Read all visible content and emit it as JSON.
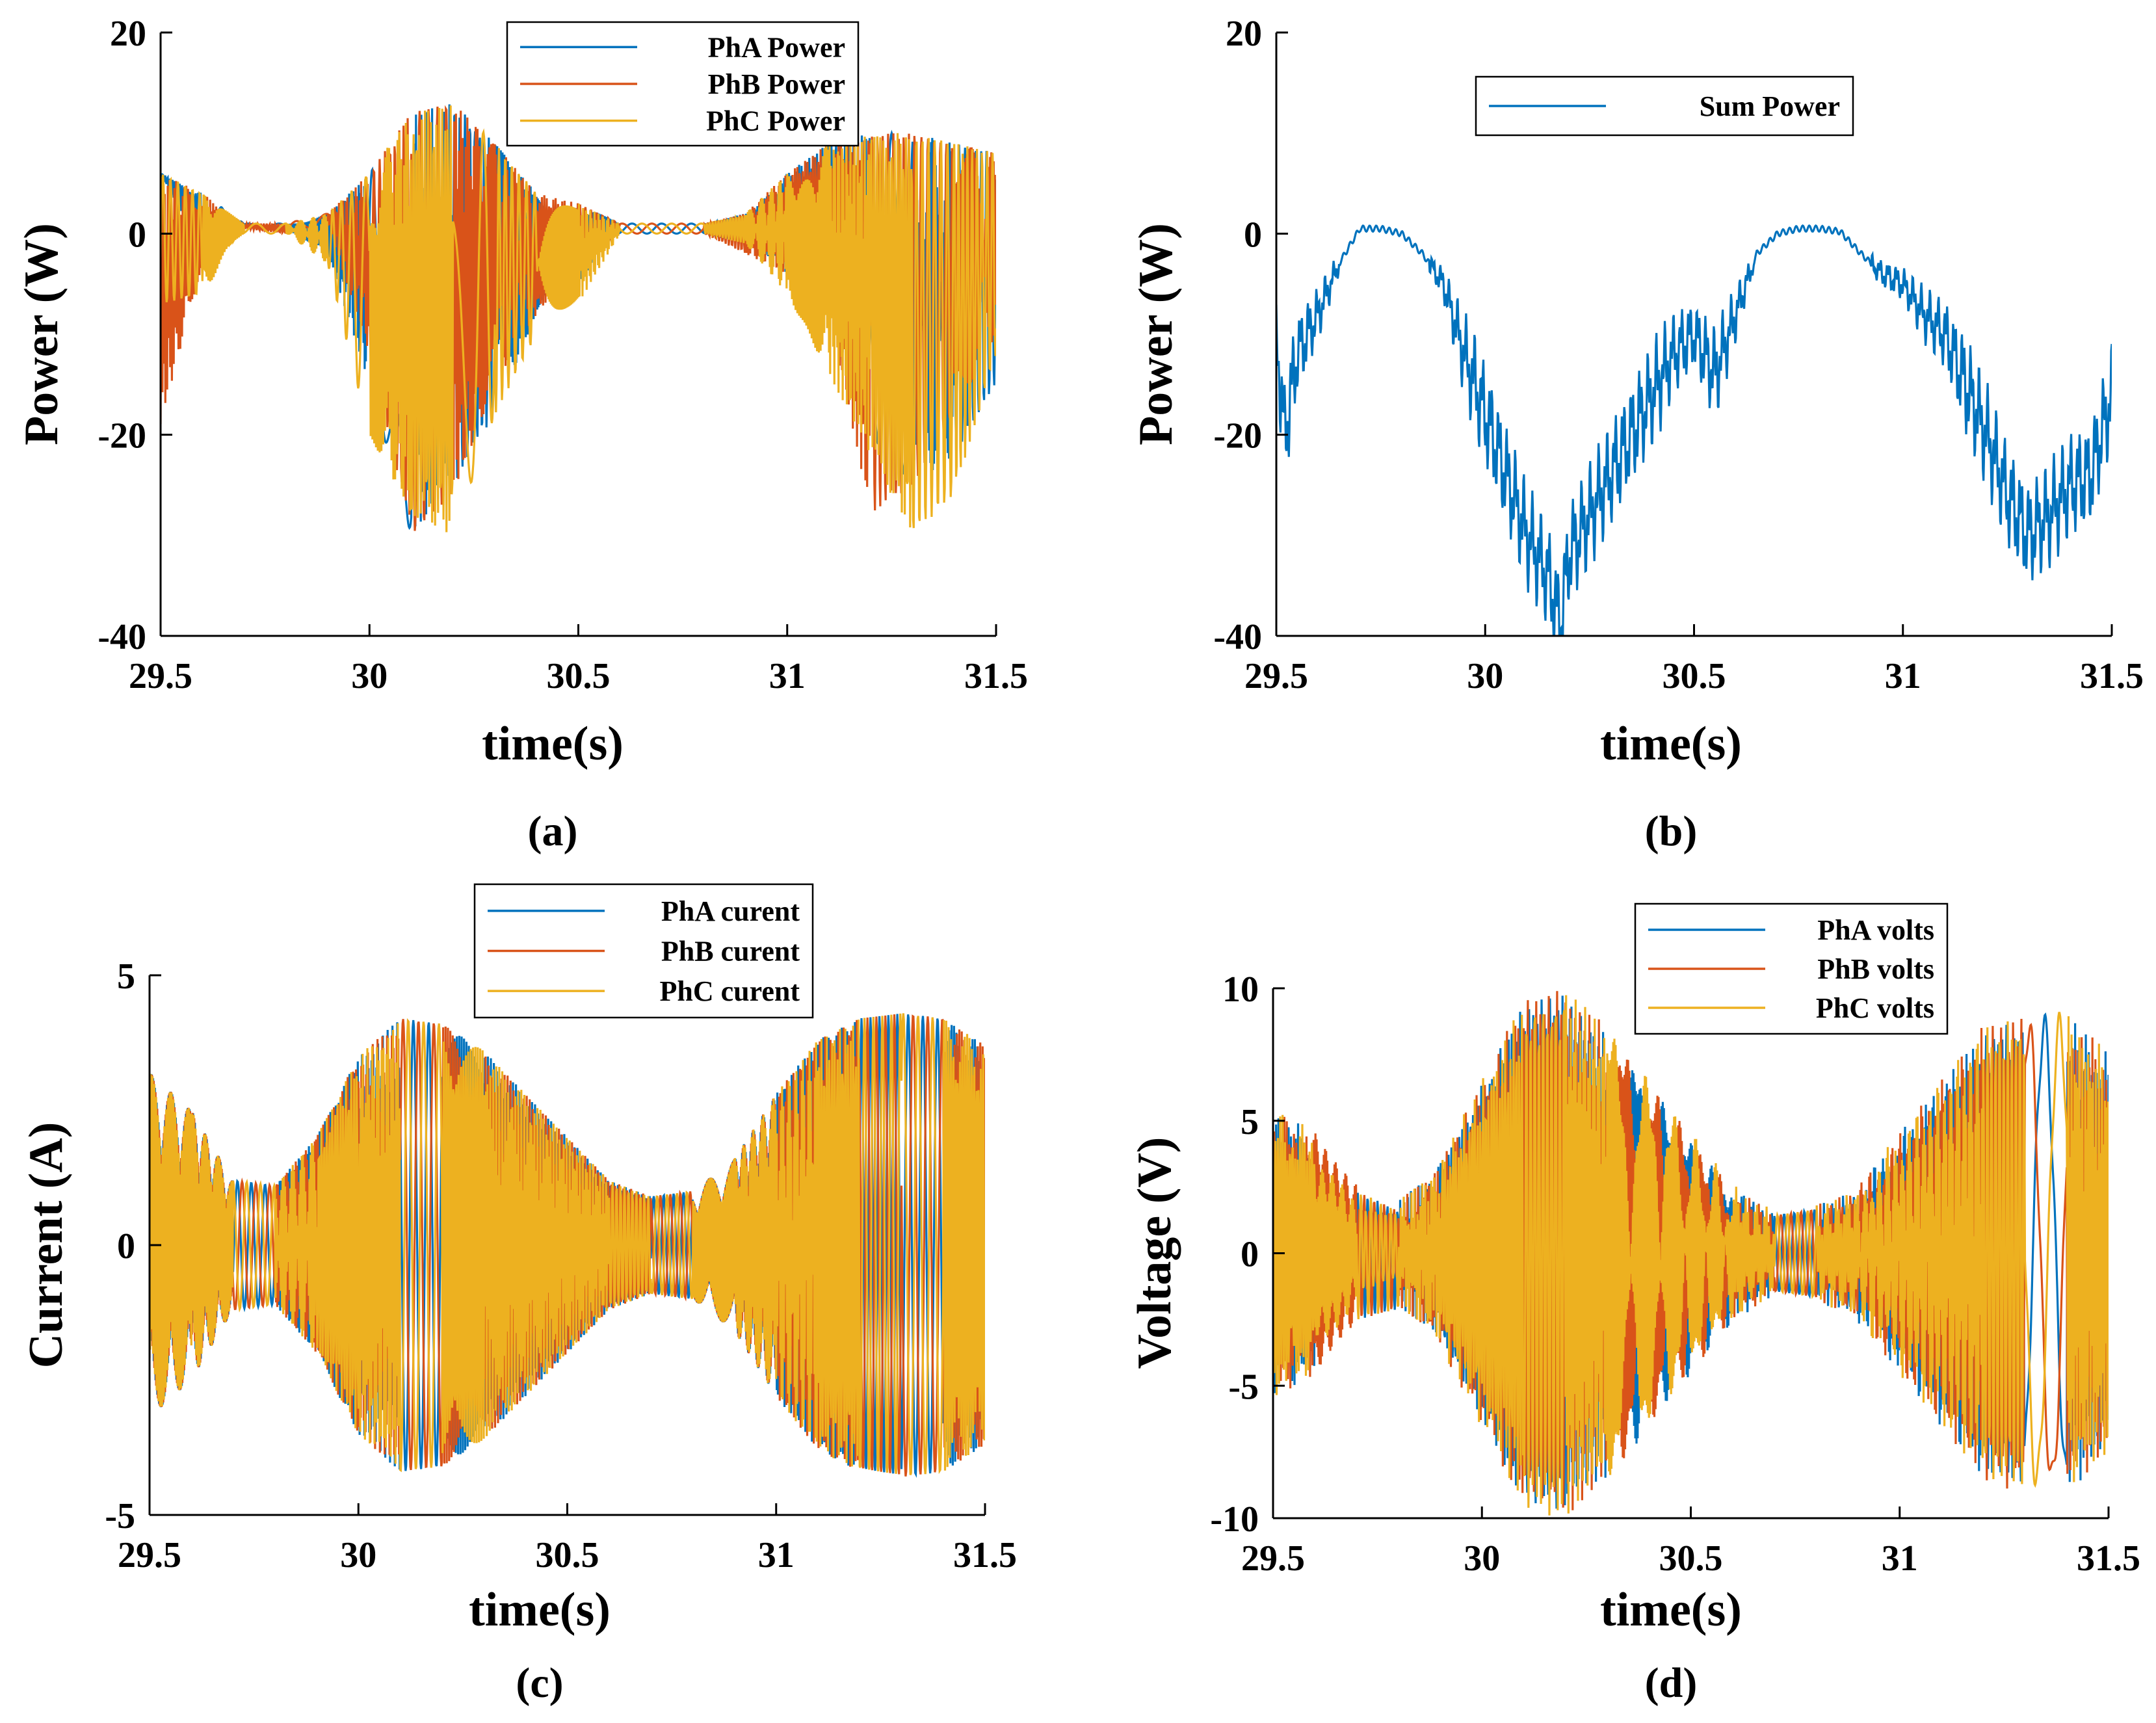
{
  "figure": {
    "captions": [
      "(a)",
      "(b)",
      "(c)",
      "(d)"
    ]
  },
  "colors": {
    "phA": "#0072BD",
    "phB": "#D95319",
    "phC": "#EDB120",
    "axis": "#000000"
  },
  "chart_data": [
    {
      "id": "a",
      "type": "line",
      "caption": "(a)",
      "xlabel": "time(s)",
      "ylabel": "Power (W)",
      "xlim": [
        29.5,
        31.5
      ],
      "ylim": [
        -40,
        20
      ],
      "xticks": [
        29.5,
        30,
        30.5,
        31,
        31.5
      ],
      "xtick_labels": [
        "29.5",
        "30",
        "30.5",
        "31",
        "31.5"
      ],
      "yticks": [
        -40,
        -20,
        0,
        20
      ],
      "ytick_labels": [
        "-40",
        "-20",
        "0",
        "20"
      ],
      "legend": "top-center",
      "series": [
        {
          "name": "PhA Power",
          "color": "#0072BD",
          "x": [
            29.5,
            29.6,
            29.7,
            29.8,
            29.9,
            30.0,
            30.1,
            30.2,
            30.3,
            30.4,
            30.5,
            30.6,
            30.7,
            30.8,
            30.9,
            31.0,
            31.1,
            31.2,
            31.3,
            31.4,
            31.5
          ],
          "values": [
            6,
            -2,
            0.5,
            0.5,
            -2,
            -15,
            -30,
            -25,
            -18,
            -8,
            -5,
            0,
            0,
            0,
            -1,
            -4,
            -8,
            -20,
            -25,
            -22,
            -15
          ]
        },
        {
          "name": "PhB Power",
          "color": "#D95319",
          "x": [
            29.5,
            29.6,
            29.7,
            29.8,
            29.9,
            30.0,
            30.1,
            30.2,
            30.3,
            30.4,
            30.5,
            30.6,
            30.7,
            30.8,
            30.9,
            31.0,
            31.1,
            31.2,
            31.3,
            31.4,
            31.5
          ],
          "values": [
            -19,
            -3,
            0.5,
            0,
            1,
            -12,
            -30,
            -26,
            -15,
            -8,
            -3,
            0,
            0,
            0,
            -2,
            -4,
            -8,
            -28,
            -25,
            -18,
            -10
          ]
        },
        {
          "name": "PhC Power",
          "color": "#EDB120",
          "x": [
            29.5,
            29.6,
            29.7,
            29.8,
            29.9,
            30.0,
            30.1,
            30.2,
            30.3,
            30.4,
            30.5,
            30.6,
            30.7,
            30.8,
            30.9,
            31.0,
            31.1,
            31.2,
            31.3,
            31.4,
            31.5
          ],
          "values": [
            -7,
            -6,
            0,
            0,
            -3,
            -20,
            -28,
            -30,
            -18,
            -10,
            -7,
            0,
            0,
            0,
            -1,
            -6,
            -14,
            -22,
            -30,
            -26,
            -12
          ]
        }
      ],
      "envelope_max": [
        6,
        4,
        1,
        1,
        2,
        6,
        12,
        13,
        9,
        4,
        3,
        1,
        1,
        1,
        2,
        6,
        9,
        10,
        10,
        9,
        8
      ]
    },
    {
      "id": "b",
      "type": "line",
      "caption": "(b)",
      "xlabel": "time(s)",
      "ylabel": "Power (W)",
      "xlim": [
        29.5,
        31.5
      ],
      "ylim": [
        -40,
        20
      ],
      "xticks": [
        29.5,
        30,
        30.5,
        31,
        31.5
      ],
      "xtick_labels": [
        "29.5",
        "30",
        "30.5",
        "31",
        "31.5"
      ],
      "yticks": [
        -40,
        -20,
        0,
        20
      ],
      "ytick_labels": [
        "-40",
        "-20",
        "0",
        "20"
      ],
      "legend": "top-center",
      "series": [
        {
          "name": "Sum Power",
          "color": "#0072BD",
          "x": [
            29.5,
            29.52,
            29.55,
            29.6,
            29.65,
            29.7,
            29.75,
            29.8,
            29.85,
            29.9,
            29.95,
            30.0,
            30.05,
            30.1,
            30.15,
            30.18,
            30.2,
            30.25,
            30.3,
            30.35,
            30.4,
            30.45,
            30.5,
            30.55,
            30.6,
            30.65,
            30.7,
            30.75,
            30.8,
            30.85,
            30.9,
            30.95,
            31.0,
            31.05,
            31.1,
            31.15,
            31.2,
            31.25,
            31.3,
            31.35,
            31.4,
            31.45,
            31.5
          ],
          "values": [
            -10,
            -20,
            -12,
            -8,
            -3,
            0.5,
            0.5,
            0,
            -2,
            -5,
            -12,
            -18,
            -24,
            -30,
            -34,
            -39,
            -32,
            -28,
            -24,
            -20,
            -16,
            -12,
            -10,
            -14,
            -8,
            -2,
            0,
            0.5,
            0.5,
            0.2,
            -2,
            -4,
            -5,
            -8,
            -10,
            -15,
            -20,
            -26,
            -30,
            -28,
            -25,
            -24,
            -16
          ]
        }
      ]
    },
    {
      "id": "c",
      "type": "line",
      "caption": "(c)",
      "xlabel": "time(s)",
      "ylabel": "Current (A)",
      "xlim": [
        29.5,
        31.5
      ],
      "ylim": [
        -5,
        5
      ],
      "xticks": [
        29.5,
        30,
        30.5,
        31,
        31.5
      ],
      "xtick_labels": [
        "29.5",
        "30",
        "30.5",
        "31",
        "31.5"
      ],
      "yticks": [
        -5,
        0,
        5
      ],
      "ytick_labels": [
        "-5",
        "0",
        "5"
      ],
      "legend": "top-center",
      "series": [
        {
          "name": "PhA curent",
          "color": "#0072BD",
          "phase": 0
        },
        {
          "name": "PhB curent",
          "color": "#D95319",
          "phase": 2.094
        },
        {
          "name": "PhC curent",
          "color": "#EDB120",
          "phase": 4.189
        }
      ],
      "amplitude_envelope": {
        "x": [
          29.5,
          29.6,
          29.7,
          29.8,
          29.9,
          30.0,
          30.1,
          30.2,
          30.3,
          30.4,
          30.5,
          30.6,
          30.7,
          30.8,
          30.9,
          31.0,
          31.1,
          31.2,
          31.3,
          31.4,
          31.5
        ],
        "values": [
          3.2,
          2.5,
          1.2,
          1.1,
          2.0,
          3.5,
          4.2,
          4.1,
          3.6,
          2.8,
          2.0,
          1.2,
          0.9,
          1.0,
          1.6,
          2.8,
          3.8,
          4.2,
          4.3,
          4.2,
          3.7
        ]
      }
    },
    {
      "id": "d",
      "type": "line",
      "caption": "(d)",
      "xlabel": "time(s)",
      "ylabel": "Voltage (V)",
      "xlim": [
        29.5,
        31.5
      ],
      "ylim": [
        -10,
        10
      ],
      "xticks": [
        29.5,
        30,
        30.5,
        31,
        31.5
      ],
      "xtick_labels": [
        "29.5",
        "30",
        "30.5",
        "31",
        "31.5"
      ],
      "yticks": [
        -10,
        -5,
        0,
        5,
        10
      ],
      "ytick_labels": [
        "-10",
        "-5",
        "0",
        "5",
        "10"
      ],
      "legend": "top-center",
      "series": [
        {
          "name": "PhA volts",
          "color": "#0072BD",
          "phase": 0
        },
        {
          "name": "PhB volts",
          "color": "#D95319",
          "phase": 2.094
        },
        {
          "name": "PhC volts",
          "color": "#EDB120",
          "phase": 4.189
        }
      ],
      "amplitude_envelope": {
        "x": [
          29.5,
          29.6,
          29.7,
          29.8,
          29.9,
          30.0,
          30.1,
          30.2,
          30.3,
          30.4,
          30.5,
          30.6,
          30.7,
          30.8,
          30.9,
          31.0,
          31.1,
          31.2,
          31.3,
          31.4,
          31.5
        ],
        "values": [
          5,
          4,
          2,
          1.5,
          3,
          6,
          9,
          9.5,
          8,
          6,
          4,
          2,
          1,
          1.2,
          2,
          4,
          6,
          8,
          8.5,
          8.5,
          7
        ]
      }
    }
  ]
}
